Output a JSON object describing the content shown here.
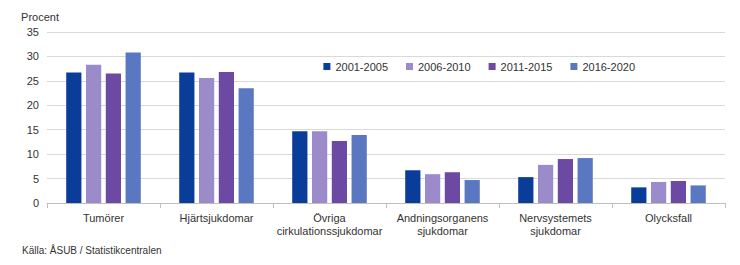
{
  "chart_data": {
    "type": "bar",
    "y_label": "Procent",
    "source": "Källa: ÅSUB / Statistikcentralen",
    "categories": [
      "Tumörer",
      "Hjärtsjukdomar",
      "Övriga\ncirkulationssjukdomar",
      "Andningsorganens\nsjukdomar",
      "Nervsystemets\nsjukdomar",
      "Olycksfall"
    ],
    "series": [
      {
        "name": "2001-2005",
        "color": "#0a3c9a",
        "values": [
          26.7,
          26.7,
          14.7,
          6.7,
          5.3,
          3.2
        ]
      },
      {
        "name": "2006-2010",
        "color": "#9b8bcb",
        "values": [
          28.3,
          25.6,
          14.7,
          5.9,
          7.8,
          4.3
        ]
      },
      {
        "name": "2011-2015",
        "color": "#6c4aa3",
        "values": [
          26.5,
          26.8,
          12.7,
          6.3,
          9.0,
          4.5
        ]
      },
      {
        "name": "2016-2020",
        "color": "#5a78c2",
        "values": [
          30.8,
          23.5,
          13.9,
          4.7,
          9.2,
          3.6
        ]
      }
    ],
    "ylim": [
      0,
      35
    ],
    "yticks": [
      0,
      5,
      10,
      15,
      20,
      25,
      30,
      35
    ],
    "grid": true,
    "legend": "upper right"
  }
}
